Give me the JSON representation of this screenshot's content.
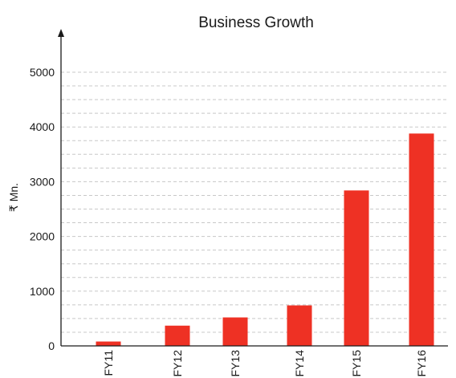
{
  "chart_data": {
    "type": "bar",
    "title": "Business Growth",
    "xlabel": "",
    "ylabel": "₹ Mn.",
    "categories": [
      "FY11",
      "FY12",
      "FY13",
      "FY14",
      "FY15",
      "FY16"
    ],
    "values": [
      80,
      370,
      520,
      740,
      2840,
      3880
    ],
    "ylim": [
      0,
      5000
    ],
    "yticks": [
      "0",
      "1000",
      "2000",
      "3000",
      "4000",
      "5000"
    ],
    "grid": true,
    "bar_color": "#ee3124",
    "grid_color": "#c8c8c8",
    "axis_color": "#1a1a1a"
  }
}
